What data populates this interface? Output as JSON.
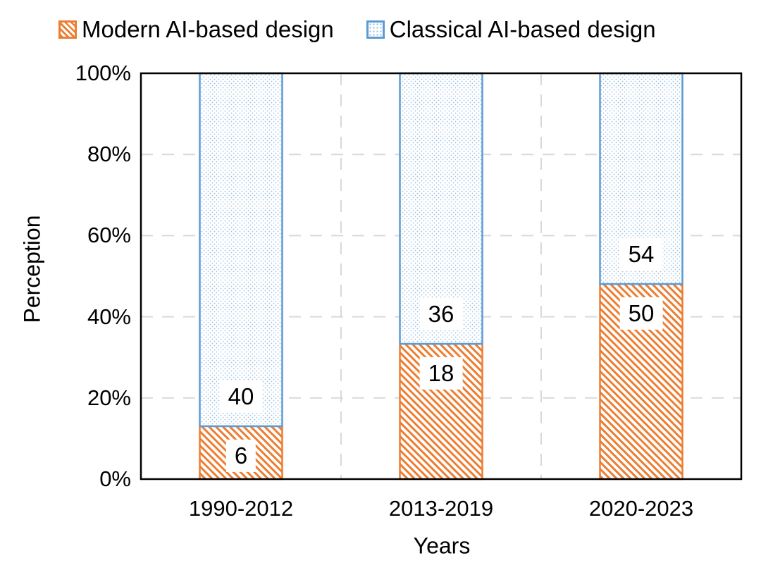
{
  "legend": {
    "items": [
      {
        "label": "Modern AI-based design",
        "color": "#ED7D31",
        "fill_pattern": "diagonal-hatch",
        "dot_or_stripe_color": "#ED7D31"
      },
      {
        "label": "Classical AI-based design",
        "color": "#5B9BD5",
        "fill_pattern": "fine-dots",
        "dot_or_stripe_color": "#9CC2E5"
      }
    ]
  },
  "chart_data": {
    "type": "bar",
    "subtype": "100pct-stacked-column",
    "title": "",
    "categories": [
      "1990-2012",
      "2013-2019",
      "2020-2023"
    ],
    "series": [
      {
        "name": "Modern AI-based design",
        "values": [
          6,
          18,
          50
        ],
        "color": "#ED7D31",
        "fill_pattern": "diagonal-hatch"
      },
      {
        "name": "Classical AI-based design",
        "values": [
          40,
          36,
          54
        ],
        "color": "#5B9BD5",
        "fill_pattern": "fine-dots"
      }
    ],
    "stacked_percent": {
      "modern_pct": [
        13.0,
        33.3,
        48.1
      ],
      "classical_pct": [
        87.0,
        66.7,
        51.9
      ]
    },
    "xlabel": "Years",
    "ylabel": "Perception",
    "yticks": [
      "0%",
      "20%",
      "40%",
      "60%",
      "80%",
      "100%"
    ],
    "ylim": [
      0,
      100
    ],
    "grid": "dashed",
    "grid_color": "#D9D9D9",
    "axis_color": "#000000",
    "legend_position": "top",
    "data_labels": true,
    "data_label_background": "#FFFFFF"
  }
}
